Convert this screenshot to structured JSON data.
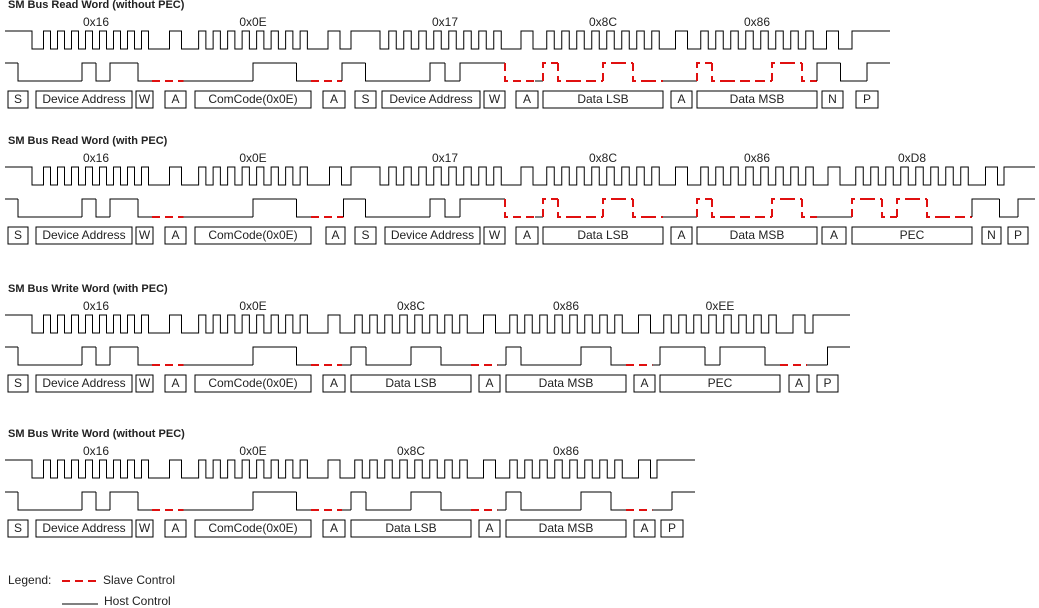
{
  "sections": [
    {
      "title": "SM Bus Read Word (without PEC)",
      "bytes": [
        "0x16",
        "0x0E",
        "0x17",
        "0x8C",
        "0x86"
      ],
      "boxes": [
        "S",
        "Device Address",
        "W",
        "A",
        "ComCode(0x0E)",
        "A",
        "S",
        "Device Address",
        "W",
        "A",
        "Data LSB",
        "A",
        "Data MSB",
        "N",
        "P"
      ]
    },
    {
      "title": "SM Bus Read Word (with PEC)",
      "bytes": [
        "0x16",
        "0x0E",
        "0x17",
        "0x8C",
        "0x86",
        "0xD8"
      ],
      "boxes": [
        "S",
        "Device Address",
        "W",
        "A",
        "ComCode(0x0E)",
        "A",
        "S",
        "Device Address",
        "W",
        "A",
        "Data LSB",
        "A",
        "Data MSB",
        "A",
        "PEC",
        "N",
        "P"
      ]
    },
    {
      "title": "SM Bus Write Word (with PEC)",
      "bytes": [
        "0x16",
        "0x0E",
        "0x8C",
        "0x86",
        "0xEE"
      ],
      "boxes": [
        "S",
        "Device Address",
        "W",
        "A",
        "ComCode(0x0E)",
        "A",
        "Data LSB",
        "A",
        "Data MSB",
        "A",
        "PEC",
        "A",
        "P"
      ]
    },
    {
      "title": "SM Bus Write Word (without PEC)",
      "bytes": [
        "0x16",
        "0x0E",
        "0x8C",
        "0x86"
      ],
      "boxes": [
        "S",
        "Device Address",
        "W",
        "A",
        "ComCode(0x0E)",
        "A",
        "Data LSB",
        "A",
        "Data MSB",
        "A",
        "P"
      ]
    }
  ],
  "legend": {
    "label": "Legend:",
    "slave": "Slave Control",
    "host": "Host Control"
  }
}
